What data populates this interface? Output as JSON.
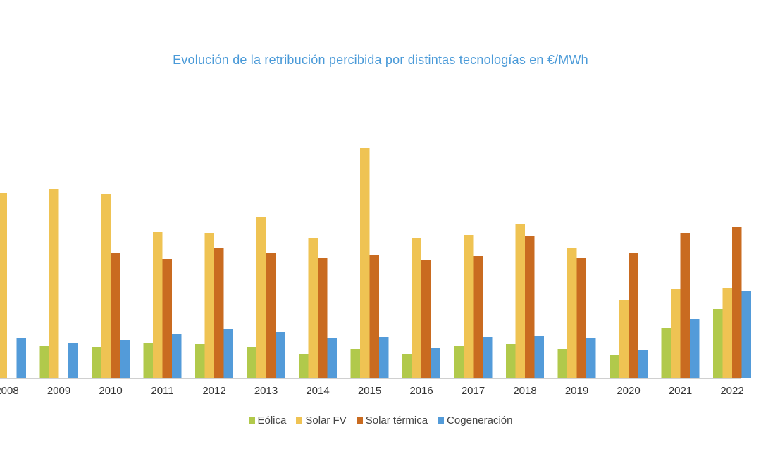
{
  "chart_data": {
    "type": "bar",
    "title": "Evolución de la retribución percibida por distintas tecnologías en €/MWh",
    "xlabel": "",
    "ylabel": "",
    "ylim": [
      0,
      330
    ],
    "grid": false,
    "legend_position": "bottom",
    "categories": [
      "2008",
      "2009",
      "2010",
      "2011",
      "2012",
      "2013",
      "2014",
      "2015",
      "2016",
      "2017",
      "2018",
      "2019",
      "2020",
      "2021",
      "2022"
    ],
    "series": [
      {
        "name": "Eólica",
        "color": "#b1c94b",
        "values": [
          null,
          46,
          44,
          50,
          48,
          44,
          34,
          41,
          34,
          46,
          48,
          41,
          32,
          71,
          98
        ]
      },
      {
        "name": "Solar FV",
        "color": "#efc353",
        "values": [
          263,
          268,
          261,
          208,
          206,
          228,
          199,
          327,
          199,
          203,
          219,
          184,
          111,
          126,
          128
        ]
      },
      {
        "name": "Solar térmica",
        "color": "#c96b20",
        "values": [
          null,
          null,
          177,
          169,
          184,
          177,
          171,
          175,
          167,
          173,
          201,
          171,
          177,
          206,
          215
        ]
      },
      {
        "name": "Cogeneración",
        "color": "#539bd9",
        "values": [
          57,
          50,
          54,
          63,
          69,
          65,
          56,
          58,
          43,
          58,
          60,
          56,
          39,
          83,
          124
        ]
      }
    ]
  }
}
